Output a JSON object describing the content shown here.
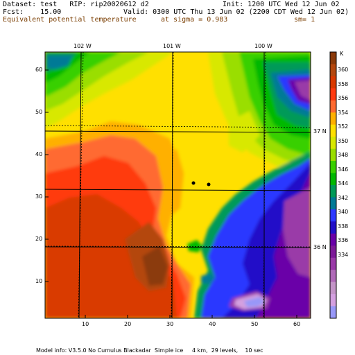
{
  "header": {
    "dataset": "Dataset: test   RIP: rip20020612 d2",
    "init": "Init: 1200 UTC Wed 12 Jun 02",
    "fcst": "Fcst:    15.00",
    "valid": "Valid: 0300 UTC Thu 13 Jun 02 (2200 CDT Wed 12 Jun 02)",
    "field": "Equivalent potential temperature",
    "sigma": "at sigma = 0.983",
    "sm": "sm= 1"
  },
  "colorbar": {
    "unit": "K",
    "levels": [
      "360",
      "358",
      "356",
      "354",
      "352",
      "350",
      "348",
      "346",
      "344",
      "342",
      "340",
      "338",
      "336",
      "334"
    ],
    "colors": [
      "#8b3a0a",
      "#b4470e",
      "#d93a00",
      "#ff3a10",
      "#ff6a30",
      "#ffb000",
      "#ffe000",
      "#d8e800",
      "#9ade00",
      "#39d000",
      "#00b800",
      "#009a58",
      "#007a96",
      "#2c38ff",
      "#2210c8",
      "#6a00a8",
      "#7d1a98",
      "#9a3aa8",
      "#b06ab8",
      "#c495c8",
      "#d4a0e0",
      "#9898f8"
    ]
  },
  "axes": {
    "x_ticks": [
      "10",
      "20",
      "30",
      "40",
      "50",
      "60"
    ],
    "y_ticks": [
      "60",
      "50",
      "40",
      "30",
      "20",
      "10"
    ],
    "lon_labels": [
      "102 W",
      "101 W",
      "100 W"
    ],
    "lat_labels": [
      "37 N",
      "36 N"
    ]
  },
  "footer": {
    "model_info": "Model info: V3.5.0 No Cumulus Blackadar  Simple ice     4 km,  29 levels,    10 sec"
  }
}
